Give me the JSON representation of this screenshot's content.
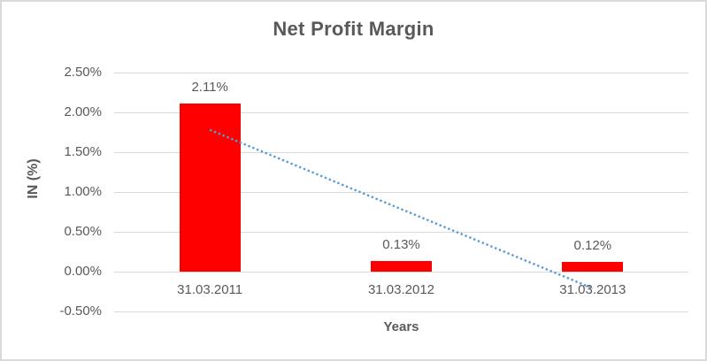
{
  "window": {
    "background": "#FFFFFF",
    "border_color": "#D9D9D9"
  },
  "chart_data": {
    "type": "bar",
    "title": "Net Profit Margin",
    "categories": [
      "31.03.2011",
      "31.03.2012",
      "31.03.2013"
    ],
    "values": [
      2.11,
      0.13,
      0.12
    ],
    "data_labels": [
      "2.11%",
      "0.13%",
      "0.12%"
    ],
    "xlabel": "Years",
    "ylabel": "IN (%)",
    "unit": "percent",
    "ylim": [
      -0.5,
      2.5
    ],
    "ytick_step": 0.5,
    "ytick_labels": [
      "2.50%",
      "2.00%",
      "1.50%",
      "1.00%",
      "0.50%",
      "0.00%",
      "-0.50%"
    ],
    "grid": true,
    "legend": "none",
    "bar_color": "#FF0000",
    "text_color": "#595959",
    "gridline_color": "#D9D9D9",
    "trendline": {
      "type": "linear",
      "style": "dotted",
      "color": "#5B9BD5",
      "start_value": 1.78,
      "end_value": -0.21
    }
  }
}
